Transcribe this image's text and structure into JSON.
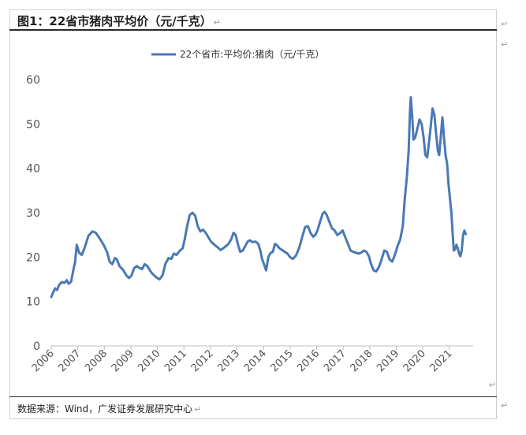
{
  "figure": {
    "title": "图1：22省市猪肉平均价（元/千克）",
    "return_mark": "↵",
    "source": "数据来源：Wind，广发证券发展研究中心"
  },
  "chart_data": {
    "type": "line",
    "title": "",
    "xlabel": "",
    "ylabel": "",
    "ylim": [
      0,
      60
    ],
    "yticks": [
      "0",
      "10",
      "20",
      "30",
      "40",
      "50",
      "60"
    ],
    "xticks": [
      "2006",
      "2007",
      "2008",
      "2009",
      "2010",
      "2011",
      "2012",
      "2013",
      "2014",
      "2015",
      "2016",
      "2017",
      "2018",
      "2019",
      "2020",
      "2021"
    ],
    "xlim": [
      2006,
      2021.9
    ],
    "grid": false,
    "legend": "top-center",
    "color": "#4a78b5",
    "series": [
      {
        "name": "22个省市:平均价:猪肉（元/千克）",
        "points": [
          [
            2006.0,
            11.0
          ],
          [
            2006.08,
            12.2
          ],
          [
            2006.15,
            13.0
          ],
          [
            2006.22,
            12.6
          ],
          [
            2006.3,
            13.8
          ],
          [
            2006.4,
            14.4
          ],
          [
            2006.5,
            14.2
          ],
          [
            2006.58,
            14.8
          ],
          [
            2006.66,
            14.0
          ],
          [
            2006.75,
            14.5
          ],
          [
            2006.83,
            17.0
          ],
          [
            2006.9,
            19.0
          ],
          [
            2006.96,
            22.8
          ],
          [
            2007.05,
            21.0
          ],
          [
            2007.15,
            20.5
          ],
          [
            2007.25,
            22.0
          ],
          [
            2007.4,
            24.8
          ],
          [
            2007.55,
            25.8
          ],
          [
            2007.68,
            25.5
          ],
          [
            2007.85,
            24.0
          ],
          [
            2007.97,
            22.8
          ],
          [
            2008.1,
            21.2
          ],
          [
            2008.2,
            19.0
          ],
          [
            2008.3,
            18.4
          ],
          [
            2008.4,
            19.8
          ],
          [
            2008.47,
            19.5
          ],
          [
            2008.57,
            18.0
          ],
          [
            2008.7,
            17.2
          ],
          [
            2008.82,
            16.0
          ],
          [
            2008.92,
            15.3
          ],
          [
            2009.02,
            15.8
          ],
          [
            2009.12,
            17.5
          ],
          [
            2009.22,
            18.0
          ],
          [
            2009.32,
            17.6
          ],
          [
            2009.42,
            17.3
          ],
          [
            2009.52,
            18.4
          ],
          [
            2009.62,
            18.0
          ],
          [
            2009.72,
            17.0
          ],
          [
            2009.82,
            16.2
          ],
          [
            2009.95,
            15.5
          ],
          [
            2010.08,
            15.0
          ],
          [
            2010.2,
            16.0
          ],
          [
            2010.3,
            18.5
          ],
          [
            2010.42,
            19.8
          ],
          [
            2010.52,
            19.6
          ],
          [
            2010.62,
            20.8
          ],
          [
            2010.72,
            20.5
          ],
          [
            2010.85,
            21.5
          ],
          [
            2010.95,
            22.0
          ],
          [
            2011.03,
            24.0
          ],
          [
            2011.12,
            27.0
          ],
          [
            2011.22,
            29.5
          ],
          [
            2011.32,
            30.0
          ],
          [
            2011.42,
            29.4
          ],
          [
            2011.52,
            27.0
          ],
          [
            2011.62,
            25.8
          ],
          [
            2011.72,
            26.2
          ],
          [
            2011.82,
            25.5
          ],
          [
            2011.92,
            24.5
          ],
          [
            2012.02,
            23.5
          ],
          [
            2012.15,
            22.8
          ],
          [
            2012.27,
            22.2
          ],
          [
            2012.38,
            21.6
          ],
          [
            2012.48,
            22.0
          ],
          [
            2012.58,
            22.5
          ],
          [
            2012.68,
            23.0
          ],
          [
            2012.78,
            24.0
          ],
          [
            2012.87,
            25.5
          ],
          [
            2012.95,
            25.0
          ],
          [
            2013.03,
            23.0
          ],
          [
            2013.12,
            21.2
          ],
          [
            2013.22,
            21.5
          ],
          [
            2013.32,
            22.6
          ],
          [
            2013.4,
            23.5
          ],
          [
            2013.48,
            23.8
          ],
          [
            2013.58,
            23.4
          ],
          [
            2013.7,
            23.5
          ],
          [
            2013.8,
            23.0
          ],
          [
            2013.88,
            21.5
          ],
          [
            2013.95,
            19.5
          ],
          [
            2014.03,
            18.2
          ],
          [
            2014.1,
            17.0
          ],
          [
            2014.18,
            20.0
          ],
          [
            2014.27,
            21.0
          ],
          [
            2014.35,
            21.2
          ],
          [
            2014.43,
            23.0
          ],
          [
            2014.52,
            22.6
          ],
          [
            2014.6,
            22.0
          ],
          [
            2014.7,
            21.6
          ],
          [
            2014.8,
            21.2
          ],
          [
            2014.9,
            20.8
          ],
          [
            2015.0,
            20.0
          ],
          [
            2015.1,
            19.6
          ],
          [
            2015.22,
            20.3
          ],
          [
            2015.35,
            22.2
          ],
          [
            2015.47,
            24.8
          ],
          [
            2015.57,
            26.8
          ],
          [
            2015.67,
            27.0
          ],
          [
            2015.77,
            25.5
          ],
          [
            2015.87,
            24.6
          ],
          [
            2015.95,
            25.0
          ],
          [
            2016.03,
            26.0
          ],
          [
            2016.13,
            28.0
          ],
          [
            2016.23,
            29.8
          ],
          [
            2016.3,
            30.2
          ],
          [
            2016.38,
            29.5
          ],
          [
            2016.48,
            28.0
          ],
          [
            2016.58,
            26.5
          ],
          [
            2016.68,
            26.0
          ],
          [
            2016.78,
            25.0
          ],
          [
            2016.88,
            25.4
          ],
          [
            2016.98,
            26.0
          ],
          [
            2017.08,
            24.5
          ],
          [
            2017.18,
            23.0
          ],
          [
            2017.28,
            21.5
          ],
          [
            2017.38,
            21.2
          ],
          [
            2017.48,
            21.0
          ],
          [
            2017.58,
            20.8
          ],
          [
            2017.68,
            21.0
          ],
          [
            2017.78,
            21.5
          ],
          [
            2017.88,
            21.2
          ],
          [
            2017.97,
            20.2
          ],
          [
            2018.05,
            18.5
          ],
          [
            2018.15,
            17.0
          ],
          [
            2018.25,
            16.8
          ],
          [
            2018.35,
            17.8
          ],
          [
            2018.45,
            19.5
          ],
          [
            2018.55,
            21.5
          ],
          [
            2018.65,
            21.2
          ],
          [
            2018.75,
            19.5
          ],
          [
            2018.85,
            19.0
          ],
          [
            2018.95,
            20.5
          ],
          [
            2019.05,
            22.5
          ],
          [
            2019.15,
            24.0
          ],
          [
            2019.25,
            27.0
          ],
          [
            2019.32,
            33.0
          ],
          [
            2019.4,
            38.0
          ],
          [
            2019.47,
            44.0
          ],
          [
            2019.52,
            53.0
          ],
          [
            2019.55,
            56.0
          ],
          [
            2019.6,
            52.0
          ],
          [
            2019.65,
            46.5
          ],
          [
            2019.72,
            47.0
          ],
          [
            2019.8,
            49.0
          ],
          [
            2019.88,
            51.0
          ],
          [
            2019.96,
            50.0
          ],
          [
            2020.03,
            47.0
          ],
          [
            2020.1,
            43.0
          ],
          [
            2020.17,
            42.5
          ],
          [
            2020.24,
            46.0
          ],
          [
            2020.31,
            50.0
          ],
          [
            2020.37,
            53.5
          ],
          [
            2020.44,
            52.0
          ],
          [
            2020.5,
            48.0
          ],
          [
            2020.57,
            44.0
          ],
          [
            2020.62,
            43.0
          ],
          [
            2020.68,
            47.0
          ],
          [
            2020.74,
            51.5
          ],
          [
            2020.8,
            47.0
          ],
          [
            2020.86,
            43.0
          ],
          [
            2020.92,
            41.0
          ],
          [
            2020.97,
            36.5
          ],
          [
            2021.03,
            33.0
          ],
          [
            2021.08,
            30.0
          ],
          [
            2021.13,
            25.0
          ],
          [
            2021.17,
            21.5
          ],
          [
            2021.22,
            21.8
          ],
          [
            2021.27,
            22.8
          ],
          [
            2021.32,
            22.0
          ],
          [
            2021.37,
            20.8
          ],
          [
            2021.42,
            20.2
          ],
          [
            2021.47,
            21.5
          ],
          [
            2021.52,
            25.0
          ],
          [
            2021.57,
            26.0
          ],
          [
            2021.62,
            25.2
          ]
        ]
      }
    ]
  }
}
